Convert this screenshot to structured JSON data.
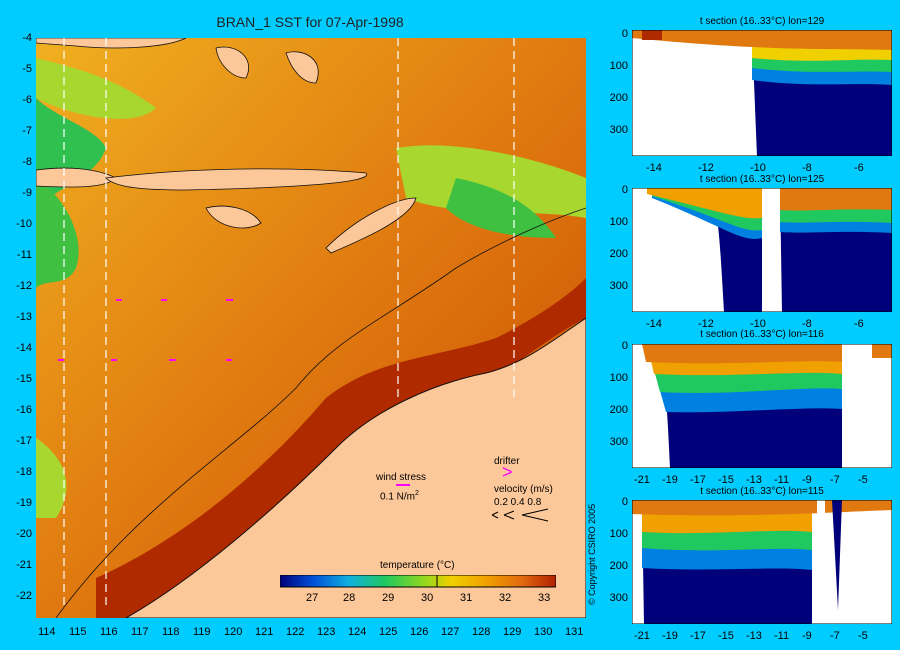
{
  "title": "BRAN_1 SST for 07-Apr-1998",
  "map": {
    "lat_ticks": [
      "-4",
      "-5",
      "-6",
      "-7",
      "-8",
      "-9",
      "-10",
      "-11",
      "-12",
      "-13",
      "-14",
      "-15",
      "-16",
      "-17",
      "-18",
      "-19",
      "-20",
      "-21",
      "-22"
    ],
    "lon_ticks": [
      "114",
      "115",
      "116",
      "117",
      "118",
      "119",
      "120",
      "121",
      "122",
      "123",
      "124",
      "125",
      "126",
      "127",
      "128",
      "129",
      "130",
      "131"
    ],
    "colors": {
      "land": "#fcc89a",
      "ocean_warm": "#e07a10",
      "ocean_hot": "#b02a00",
      "ocean_mid": "#f0b020",
      "ocean_cool": "#a8d830",
      "ocean_cold": "#28c050",
      "coast": "#101010"
    }
  },
  "legend": {
    "wind_stress_label": "wind stress",
    "wind_stress_value": "0.1 N/m",
    "wind_stress_sup": "2",
    "drifter_label": "drifter",
    "velocity_label": "velocity (m/s)",
    "velocity_values": "0.2 0.4 0.8",
    "colorbar_label": "temperature (°C)",
    "colorbar_ticks": [
      "27",
      "28",
      "29",
      "30",
      "31",
      "32",
      "33"
    ],
    "colorbar_colors": [
      "#00007a",
      "#0050d8",
      "#10b0e0",
      "#20c860",
      "#90d820",
      "#f0d000",
      "#f0a000",
      "#e06810",
      "#b02000"
    ]
  },
  "sections": [
    {
      "title": "t section (16..33°C) lon=129",
      "xticks": [
        "-14",
        "-12",
        "-10",
        "-8",
        "-6"
      ],
      "yticks": [
        "0",
        "100",
        "200",
        "300"
      ]
    },
    {
      "title": "t section (16..33°C) lon=125",
      "xticks": [
        "-14",
        "-12",
        "-10",
        "-8",
        "-6"
      ],
      "yticks": [
        "0",
        "100",
        "200",
        "300"
      ]
    },
    {
      "title": "t section (16..33°C) lon=116",
      "xticks": [
        "-21",
        "-19",
        "-17",
        "-15",
        "-13",
        "-11",
        "-9",
        "-7",
        "-5"
      ],
      "yticks": [
        "0",
        "100",
        "200",
        "300"
      ]
    },
    {
      "title": "t section (16..33°C) lon=115",
      "xticks": [
        "-21",
        "-19",
        "-17",
        "-15",
        "-13",
        "-11",
        "-9",
        "-7",
        "-5"
      ],
      "yticks": [
        "0",
        "100",
        "200",
        "300"
      ]
    }
  ],
  "copyright": "© Copyright CSIRO 2005"
}
